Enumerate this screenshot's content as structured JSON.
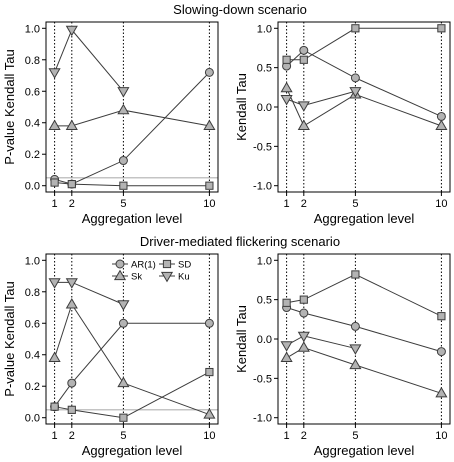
{
  "figure": {
    "titles": [
      "Slowing-down scenario",
      "Driver-mediated flickering scenario"
    ],
    "colors": {
      "marker_fill": "#b3b3b3",
      "marker_stroke": "#3c3c3c",
      "line": "#3c3c3c",
      "reference_line": "#b0b0b0",
      "axes": "#000000"
    }
  },
  "chart_data": [
    {
      "panel": "slowing-down-pvalue",
      "type": "line",
      "title": "Slowing-down scenario",
      "xlabel": "Aggregation level",
      "ylabel": "P-value Kendall Tau",
      "x": [
        1,
        2,
        5,
        10
      ],
      "xticks": [
        "1",
        "2",
        "5",
        "10"
      ],
      "ylim": [
        -0.04,
        1.04
      ],
      "yticks": [
        "0.0",
        "0.2",
        "0.4",
        "0.6",
        "0.8",
        "1.0"
      ],
      "reference_line": 0.05,
      "series": [
        {
          "name": "AR(1)",
          "marker": "circle",
          "values": [
            0.04,
            0.01,
            0.16,
            0.72
          ]
        },
        {
          "name": "SD",
          "marker": "square",
          "values": [
            0.02,
            0.01,
            0.0,
            0.0
          ]
        },
        {
          "name": "Sk",
          "marker": "triangle-up",
          "values": [
            0.38,
            0.38,
            0.48,
            0.38
          ]
        },
        {
          "name": "Ku",
          "marker": "triangle-down",
          "values": [
            0.72,
            0.99,
            0.6,
            null
          ]
        }
      ]
    },
    {
      "panel": "slowing-down-tau",
      "type": "line",
      "xlabel": "Aggregation level",
      "ylabel": "Kendall Tau",
      "x": [
        1,
        2,
        5,
        10
      ],
      "xticks": [
        "1",
        "2",
        "5",
        "10"
      ],
      "ylim": [
        -1.08,
        1.08
      ],
      "yticks": [
        "-1.0",
        "-0.5",
        "0.0",
        "0.5",
        "1.0"
      ],
      "series": [
        {
          "name": "AR(1)",
          "marker": "circle",
          "values": [
            0.52,
            0.72,
            0.37,
            -0.12
          ]
        },
        {
          "name": "SD",
          "marker": "square",
          "values": [
            0.6,
            0.6,
            1.0,
            1.0
          ]
        },
        {
          "name": "Sk",
          "marker": "triangle-up",
          "values": [
            0.24,
            -0.24,
            0.16,
            -0.24
          ]
        },
        {
          "name": "Ku",
          "marker": "triangle-down",
          "values": [
            0.1,
            0.02,
            0.2,
            null
          ]
        }
      ]
    },
    {
      "panel": "flickering-pvalue",
      "type": "line",
      "title": "Driver-mediated flickering scenario",
      "xlabel": "Aggregation level",
      "ylabel": "P-value Kendall Tau",
      "x": [
        1,
        2,
        5,
        10
      ],
      "xticks": [
        "1",
        "2",
        "5",
        "10"
      ],
      "ylim": [
        -0.04,
        1.04
      ],
      "yticks": [
        "0.0",
        "0.2",
        "0.4",
        "0.6",
        "0.8",
        "1.0"
      ],
      "reference_line": 0.05,
      "legend": {
        "placement": "top-right",
        "entries": [
          "AR(1)",
          "SD",
          "Sk",
          "Ku"
        ]
      },
      "series": [
        {
          "name": "AR(1)",
          "marker": "circle",
          "values": [
            0.07,
            0.22,
            0.6,
            0.6
          ]
        },
        {
          "name": "SD",
          "marker": "square",
          "values": [
            0.07,
            0.05,
            0.0,
            0.29
          ]
        },
        {
          "name": "Sk",
          "marker": "triangle-up",
          "values": [
            0.38,
            0.72,
            0.22,
            0.02
          ]
        },
        {
          "name": "Ku",
          "marker": "triangle-down",
          "values": [
            0.86,
            0.86,
            0.72,
            null
          ]
        }
      ]
    },
    {
      "panel": "flickering-tau",
      "type": "line",
      "xlabel": "Aggregation level",
      "ylabel": "Kendall Tau",
      "x": [
        1,
        2,
        5,
        10
      ],
      "xticks": [
        "1",
        "2",
        "5",
        "10"
      ],
      "ylim": [
        -1.08,
        1.08
      ],
      "yticks": [
        "-1.0",
        "-0.5",
        "0.0",
        "0.5",
        "1.0"
      ],
      "series": [
        {
          "name": "AR(1)",
          "marker": "circle",
          "values": [
            0.4,
            0.33,
            0.16,
            -0.16
          ]
        },
        {
          "name": "SD",
          "marker": "square",
          "values": [
            0.46,
            0.5,
            0.82,
            0.29
          ]
        },
        {
          "name": "Sk",
          "marker": "triangle-up",
          "values": [
            -0.24,
            -0.11,
            -0.33,
            -0.69
          ]
        },
        {
          "name": "Ku",
          "marker": "triangle-down",
          "values": [
            -0.08,
            0.04,
            -0.12,
            null
          ]
        }
      ]
    }
  ]
}
